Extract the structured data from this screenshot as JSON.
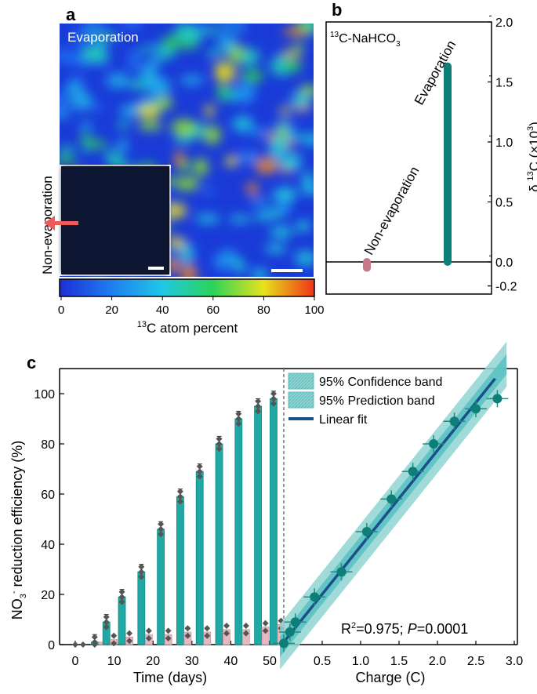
{
  "panel_a": {
    "label": "a",
    "main_image_caption": "Evaporation",
    "inset_caption": "Non-evaporation",
    "colorbar": {
      "ticks": [
        "0",
        "20",
        "40",
        "60",
        "80",
        "100"
      ],
      "label_sup": "13",
      "label_text": "C atom percent"
    }
  },
  "panel_b": {
    "label": "b",
    "legend_sup": "13",
    "legend_text": "C-NaHCO",
    "legend_sub": "3",
    "bar_labels": [
      "Non-evaporation",
      "Evaporation"
    ]
  },
  "panel_c": {
    "label": "c",
    "left_xlabel": "Time (days)",
    "right_xlabel": "Charge (C)",
    "ylabel_prefix": "NO",
    "ylabel_sub": "3",
    "ylabel_sup": "-",
    "ylabel_suffix": " reduction efficiency (%)",
    "legend": [
      "95% Confidence band",
      "95% Prediction band",
      "Linear fit"
    ],
    "annotation_r2_prefix": "R",
    "annotation_r2_sup": "2",
    "annotation_r2_value": "=0.975; ",
    "annotation_p_label": "P",
    "annotation_p_value": "=0.0001"
  },
  "colors": {
    "teal": "#1fa8a4",
    "teal_dark": "#0e7f78",
    "pink": "#e8b8c0",
    "pink_dot": "#c4788a",
    "fit_line": "#1a4f8a",
    "band_conf": "#58bfc1",
    "band_pred": "#8fd4d2",
    "diamond": "#555555"
  },
  "chart_data": [
    {
      "id": "b",
      "type": "bar",
      "categories": [
        "Non-evaporation",
        "Evaporation"
      ],
      "values": [
        -0.05,
        1.63
      ],
      "ylabel": "δ 13C (×10³)",
      "ylim": [
        -0.2,
        2.0
      ],
      "yticks": [
        -0.2,
        0.0,
        0.5,
        1.0,
        1.5,
        2.0
      ],
      "ytick_labels": [
        "-0.2",
        "0.0",
        "0.5",
        "1.0",
        "1.5",
        "2.0"
      ]
    },
    {
      "id": "c-left",
      "type": "bar",
      "title": "",
      "xlabel": "Time (days)",
      "ylabel": "NO3- reduction efficiency (%)",
      "ylim": [
        0,
        110
      ],
      "xlim": [
        -5,
        53
      ],
      "xticks": [
        0,
        10,
        20,
        30,
        40,
        50
      ],
      "yticks": [
        0,
        20,
        40,
        60,
        80,
        100
      ],
      "x": [
        0,
        2,
        5,
        8,
        12,
        17,
        22,
        27,
        32,
        37,
        42,
        47,
        51
      ],
      "series": [
        {
          "name": "Evaporation",
          "values": [
            0,
            0,
            1,
            9,
            19,
            29,
            46,
            59,
            69,
            80,
            90,
            95,
            98
          ]
        },
        {
          "name": "Non-evaporation",
          "values": [
            0,
            0,
            1,
            2,
            3,
            4,
            4,
            5,
            5,
            6,
            6,
            7,
            8
          ]
        }
      ]
    },
    {
      "id": "c-right",
      "type": "scatter",
      "xlabel": "Charge (C)",
      "xlim": [
        0,
        3.0
      ],
      "ylim": [
        0,
        110
      ],
      "xticks": [
        0.5,
        1.0,
        1.5,
        2.0,
        2.5,
        3.0
      ],
      "xtick_labels": [
        "0.5",
        "1.0",
        "1.5",
        "2.0",
        "2.5",
        "3.0"
      ],
      "x": [
        0.0,
        0.08,
        0.15,
        0.4,
        0.75,
        1.08,
        1.4,
        1.68,
        1.95,
        2.22,
        2.5,
        2.78
      ],
      "y": [
        0.5,
        5,
        9,
        19,
        29,
        45,
        58,
        69,
        80,
        89,
        94,
        98
      ],
      "fit": {
        "x": [
          0.0,
          2.75
        ],
        "y": [
          1,
          106
        ]
      }
    }
  ]
}
